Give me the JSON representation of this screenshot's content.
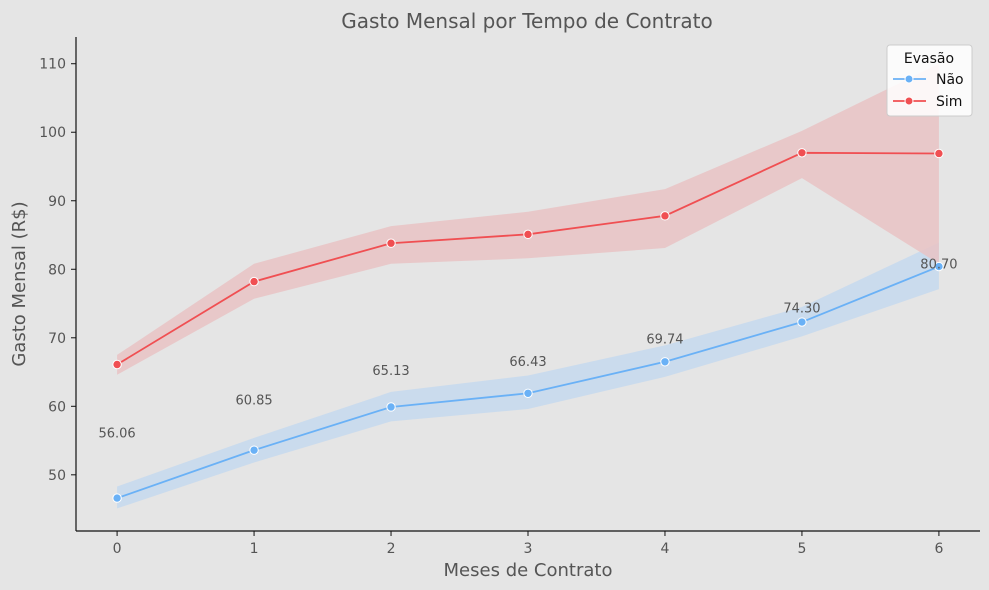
{
  "colors": {
    "background": "#e5e5e5",
    "nao": "#6ab1f6",
    "sim": "#f04f52",
    "nao_band": "#c5d9ee",
    "sim_band": "#e9c3c4",
    "axis": "#111111",
    "text": "#555555"
  },
  "chart_data": {
    "type": "line",
    "title": "Gasto Mensal por Tempo de Contrato",
    "xlabel": "Meses de Contrato",
    "ylabel": "Gasto Mensal (R$)",
    "x": [
      0,
      1,
      2,
      3,
      4,
      5,
      6
    ],
    "xlim": [
      -0.3,
      6.3
    ],
    "ylim": [
      41.8,
      113.9
    ],
    "yticks": [
      50,
      60,
      70,
      80,
      90,
      100,
      110
    ],
    "grid": false,
    "legend": {
      "title": "Evasão",
      "placement": "top-right"
    },
    "series": [
      {
        "name": "Não",
        "color": "#6ab1f6",
        "values": [
          46.6,
          53.6,
          59.9,
          61.9,
          66.5,
          72.3,
          80.4
        ],
        "ci_low": [
          45.1,
          51.8,
          57.8,
          59.6,
          64.3,
          70.2,
          77.1
        ],
        "ci_high": [
          48.3,
          55.4,
          62.1,
          64.5,
          68.9,
          74.5,
          83.9
        ]
      },
      {
        "name": "Sim",
        "color": "#f04f52",
        "values": [
          66.1,
          78.2,
          83.8,
          85.1,
          87.8,
          97.0,
          96.9
        ],
        "ci_low": [
          64.6,
          75.7,
          80.8,
          81.6,
          83.1,
          93.3,
          80.8
        ],
        "ci_high": [
          67.5,
          80.8,
          86.3,
          88.4,
          91.7,
          100.2,
          110.0
        ]
      }
    ],
    "annotations": [
      {
        "x": 0,
        "y": 56.06,
        "text": "56.06"
      },
      {
        "x": 1,
        "y": 60.85,
        "text": "60.85"
      },
      {
        "x": 2,
        "y": 65.13,
        "text": "65.13"
      },
      {
        "x": 3,
        "y": 66.43,
        "text": "66.43"
      },
      {
        "x": 4,
        "y": 69.74,
        "text": "69.74"
      },
      {
        "x": 5,
        "y": 74.3,
        "text": "74.30"
      },
      {
        "x": 6,
        "y": 80.7,
        "text": "80.70"
      }
    ]
  }
}
